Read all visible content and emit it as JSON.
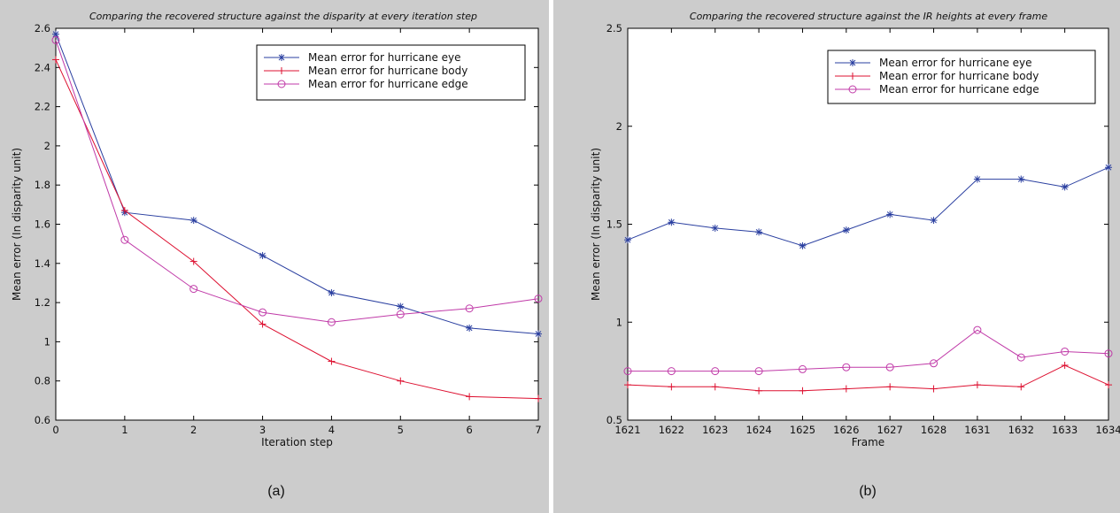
{
  "chart_data": [
    {
      "type": "line",
      "title": "Comparing the recovered structure against the disparity at every iteration step",
      "xlabel": "Iteration step",
      "ylabel": "Mean error (In disparity unit)",
      "caption": "(a)",
      "x": [
        0,
        1,
        2,
        3,
        4,
        5,
        6,
        7
      ],
      "x_tick_labels": [
        "0",
        "1",
        "2",
        "3",
        "4",
        "5",
        "6",
        "7"
      ],
      "xlim": [
        0,
        7
      ],
      "ylim": [
        0.6,
        2.6
      ],
      "y_ticks": [
        0.6,
        0.8,
        1.0,
        1.2,
        1.4,
        1.6,
        1.8,
        2.0,
        2.2,
        2.4,
        2.6
      ],
      "y_tick_labels": [
        "0.6",
        "0.8",
        "1",
        "1.2",
        "1.4",
        "1.6",
        "1.8",
        "2",
        "2.2",
        "2.4",
        "2.6"
      ],
      "grid": false,
      "legend_position": "top-right",
      "series": [
        {
          "name": "Mean error for hurricane eye",
          "color": "#2a3fa0",
          "marker": "star",
          "values": [
            2.57,
            1.66,
            1.62,
            1.44,
            1.25,
            1.18,
            1.07,
            1.04
          ]
        },
        {
          "name": "Mean error for hurricane body",
          "color": "#dd1030",
          "marker": "plus",
          "values": [
            2.44,
            1.67,
            1.41,
            1.09,
            0.9,
            0.8,
            0.72,
            0.71
          ]
        },
        {
          "name": "Mean error for hurricane edge",
          "color": "#c03aa8",
          "marker": "circle",
          "values": [
            2.54,
            1.52,
            1.27,
            1.15,
            1.1,
            1.14,
            1.17,
            1.22
          ]
        }
      ]
    },
    {
      "type": "line",
      "title": "Comparing the recovered structure against the IR heights at every frame",
      "xlabel": "Frame",
      "ylabel": "Mean error (In disparity unit)",
      "caption": "(b)",
      "x_tick_labels": [
        "1621",
        "1622",
        "1623",
        "1624",
        "1625",
        "1626",
        "1627",
        "1628",
        "1631",
        "1632",
        "1633",
        "1634"
      ],
      "ylim": [
        0.5,
        2.5
      ],
      "y_ticks": [
        0.5,
        1.0,
        1.5,
        2.0,
        2.5
      ],
      "y_tick_labels": [
        "0.5",
        "1",
        "1.5",
        "2",
        "2.5"
      ],
      "grid": false,
      "legend_position": "top-right",
      "series": [
        {
          "name": "Mean error for hurricane eye",
          "color": "#2a3fa0",
          "marker": "star",
          "values": [
            1.42,
            1.51,
            1.48,
            1.46,
            1.39,
            1.47,
            1.55,
            1.52,
            1.73,
            1.73,
            1.69,
            1.79
          ]
        },
        {
          "name": "Mean error for hurricane body",
          "color": "#dd1030",
          "marker": "plus",
          "values": [
            0.68,
            0.67,
            0.67,
            0.65,
            0.65,
            0.66,
            0.67,
            0.66,
            0.68,
            0.67,
            0.78,
            0.68
          ]
        },
        {
          "name": "Mean error for hurricane edge",
          "color": "#c03aa8",
          "marker": "circle",
          "values": [
            0.75,
            0.75,
            0.75,
            0.75,
            0.76,
            0.77,
            0.77,
            0.79,
            0.96,
            0.82,
            0.85,
            0.84
          ]
        }
      ]
    }
  ]
}
